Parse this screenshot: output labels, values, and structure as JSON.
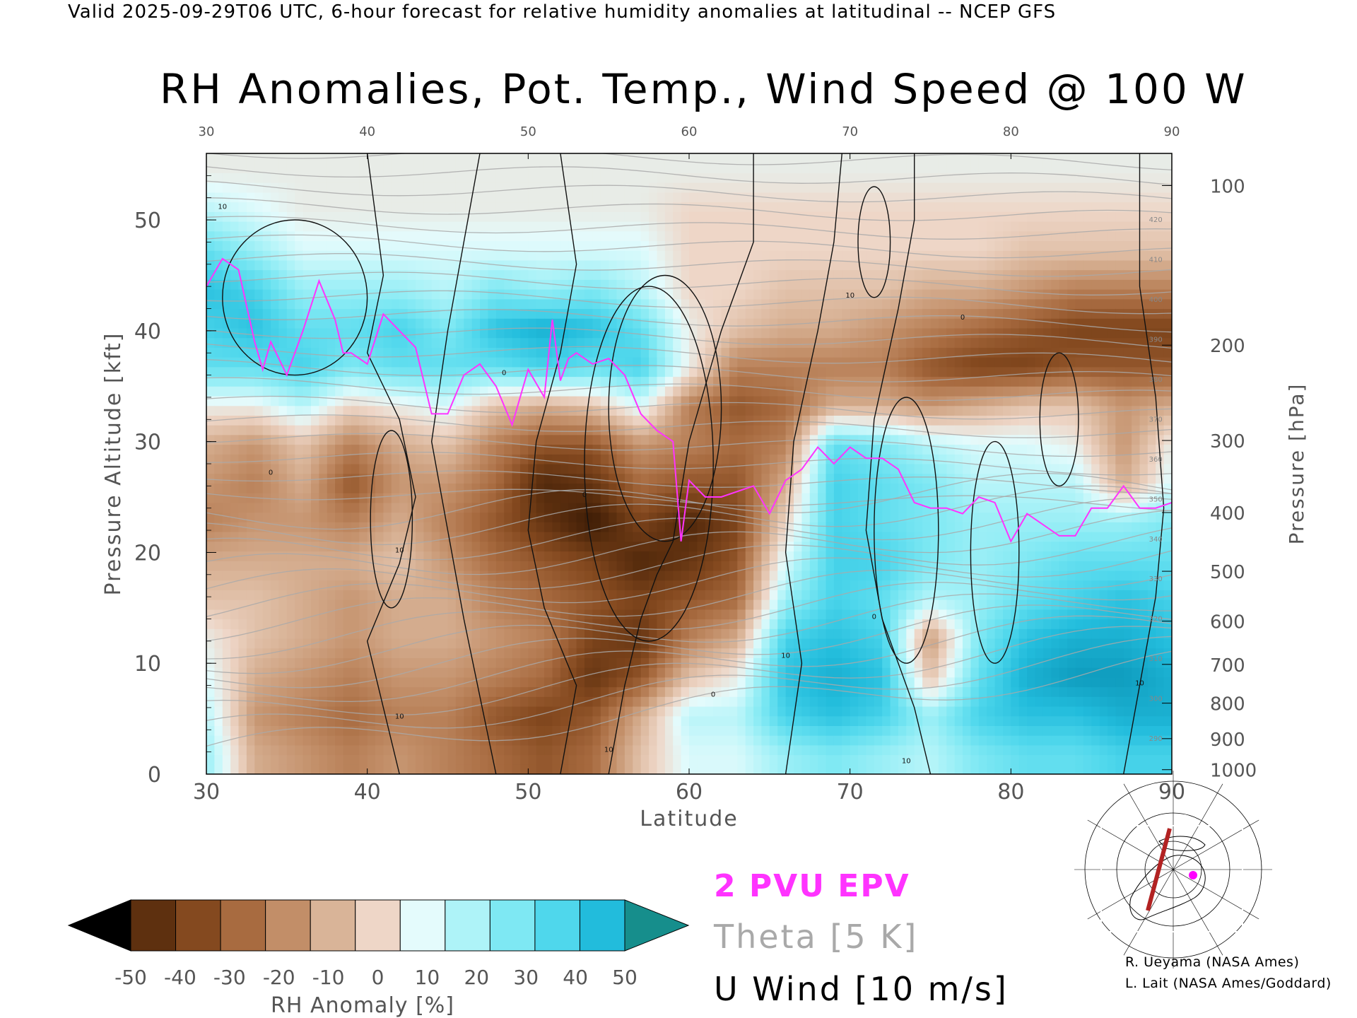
{
  "header": {
    "line": "Valid 2025-09-29T06 UTC, 6-hour forecast for relative humidity anomalies at latitudinal -- NCEP GFS"
  },
  "chart_data": {
    "type": "heatmap",
    "title": "RH Anomalies, Pot. Temp., Wind Speed @ 100 W",
    "xlabel": "Latitude",
    "ylabel_left": "Pressure Altitude [kft]",
    "ylabel_right": "Pressure [hPa]",
    "xlim": [
      30,
      90
    ],
    "ylim": [
      0,
      56
    ],
    "x_ticks": [
      30,
      40,
      50,
      60,
      70,
      80,
      90
    ],
    "y_ticks": [
      0,
      10,
      20,
      30,
      40,
      50
    ],
    "pressure_ticks": [
      {
        "label": "100",
        "kft": 53.1
      },
      {
        "label": "200",
        "kft": 38.7
      },
      {
        "label": "300",
        "kft": 30.1
      },
      {
        "label": "400",
        "kft": 23.6
      },
      {
        "label": "500",
        "kft": 18.3
      },
      {
        "label": "600",
        "kft": 13.8
      },
      {
        "label": "700",
        "kft": 9.9
      },
      {
        "label": "800",
        "kft": 6.4
      },
      {
        "label": "900",
        "kft": 3.2
      },
      {
        "label": "1000",
        "kft": 0.4
      }
    ],
    "colorbar": {
      "label": "RH Anomaly [%]",
      "ticks": [
        "-50",
        "-40",
        "-30",
        "-20",
        "-10",
        "0",
        "10",
        "20",
        "30",
        "40",
        "50"
      ],
      "colors": [
        "#3a1a05",
        "#5e300f",
        "#84491f",
        "#a86b40",
        "#c28e68",
        "#d9b498",
        "#eed6c7",
        "#e4fbfc",
        "#aef3f8",
        "#7ee8f3",
        "#4fd7ec",
        "#22bcdc",
        "#0f9cbe"
      ],
      "under_color": "#000000",
      "over_color": "#168e8c"
    },
    "legend": {
      "epv": "2 PVU EPV",
      "theta": "Theta [5 K]",
      "uwind": "U Wind [10 m/s]",
      "epv_color": "#ff33ff",
      "theta_color": "#a9a9a9"
    },
    "rh_bands": [
      {
        "lat": 30,
        "anom": [
          20,
          15,
          10,
          5,
          -5,
          -10,
          -20,
          -15,
          -10,
          5,
          30,
          35,
          40,
          30,
          15,
          5
        ]
      },
      {
        "lat": 33,
        "anom": [
          -10,
          -15,
          -10,
          -5,
          -5,
          -10,
          -15,
          -20,
          -15,
          5,
          30,
          40,
          35,
          20,
          10,
          5
        ]
      },
      {
        "lat": 36,
        "anom": [
          -15,
          -20,
          -15,
          -10,
          -10,
          -10,
          -15,
          -10,
          -5,
          15,
          35,
          30,
          20,
          10,
          5,
          5
        ]
      },
      {
        "lat": 39,
        "anom": [
          -20,
          -25,
          -20,
          -15,
          -15,
          -10,
          -20,
          -30,
          -20,
          0,
          25,
          30,
          20,
          10,
          5,
          5
        ]
      },
      {
        "lat": 42,
        "anom": [
          -15,
          -20,
          -15,
          -10,
          -10,
          -5,
          -10,
          -15,
          -10,
          5,
          30,
          35,
          20,
          10,
          5,
          5
        ]
      },
      {
        "lat": 45,
        "anom": [
          -20,
          -20,
          -15,
          -10,
          -10,
          -15,
          -20,
          -15,
          -5,
          10,
          30,
          25,
          15,
          10,
          5,
          5
        ]
      },
      {
        "lat": 48,
        "anom": [
          -25,
          -30,
          -20,
          -15,
          -20,
          -25,
          -30,
          -25,
          -20,
          -5,
          30,
          40,
          25,
          10,
          5,
          5
        ]
      },
      {
        "lat": 51,
        "anom": [
          -30,
          -35,
          -25,
          -20,
          -25,
          -30,
          -40,
          -45,
          -30,
          -10,
          35,
          45,
          20,
          10,
          5,
          5
        ]
      },
      {
        "lat": 54,
        "anom": [
          -25,
          -30,
          -40,
          -35,
          -30,
          -35,
          -50,
          -40,
          -30,
          -5,
          30,
          40,
          25,
          10,
          5,
          5
        ]
      },
      {
        "lat": 57,
        "anom": [
          -5,
          -10,
          -30,
          -40,
          -35,
          -45,
          -35,
          -25,
          -15,
          10,
          35,
          30,
          15,
          10,
          5,
          5
        ]
      },
      {
        "lat": 60,
        "anom": [
          10,
          15,
          -5,
          -20,
          -30,
          -40,
          -45,
          -30,
          -20,
          -20,
          5,
          5,
          0,
          0,
          0,
          5
        ]
      },
      {
        "lat": 63,
        "anom": [
          10,
          15,
          5,
          -10,
          -25,
          -30,
          -35,
          -30,
          -25,
          -30,
          -20,
          -5,
          0,
          0,
          0,
          5
        ]
      },
      {
        "lat": 66,
        "anom": [
          20,
          35,
          40,
          35,
          20,
          10,
          0,
          -10,
          -20,
          -25,
          -20,
          -10,
          -5,
          0,
          0,
          5
        ]
      },
      {
        "lat": 69,
        "anom": [
          25,
          40,
          45,
          40,
          35,
          35,
          35,
          35,
          30,
          -10,
          -20,
          -10,
          -5,
          0,
          0,
          5
        ]
      },
      {
        "lat": 72,
        "anom": [
          20,
          35,
          40,
          35,
          30,
          35,
          30,
          30,
          25,
          -10,
          -20,
          -15,
          -5,
          0,
          0,
          5
        ]
      },
      {
        "lat": 75,
        "anom": [
          15,
          20,
          -5,
          -15,
          15,
          25,
          25,
          25,
          15,
          -15,
          -30,
          -20,
          -10,
          0,
          0,
          5
        ]
      },
      {
        "lat": 78,
        "anom": [
          25,
          35,
          30,
          25,
          20,
          20,
          20,
          15,
          10,
          -10,
          -35,
          -25,
          -10,
          0,
          0,
          5
        ]
      },
      {
        "lat": 81,
        "anom": [
          30,
          40,
          45,
          40,
          30,
          25,
          20,
          15,
          10,
          -5,
          -35,
          -30,
          -15,
          -5,
          0,
          5
        ]
      },
      {
        "lat": 84,
        "anom": [
          30,
          40,
          50,
          45,
          35,
          30,
          20,
          15,
          5,
          -5,
          -30,
          -35,
          -20,
          -5,
          0,
          5
        ]
      },
      {
        "lat": 87,
        "anom": [
          35,
          45,
          50,
          45,
          40,
          30,
          20,
          -10,
          -15,
          -15,
          -30,
          -35,
          -20,
          -5,
          0,
          5
        ]
      },
      {
        "lat": 90,
        "anom": [
          35,
          45,
          45,
          40,
          35,
          30,
          25,
          10,
          5,
          -10,
          -30,
          -35,
          -20,
          -5,
          0,
          5
        ]
      }
    ],
    "rh_levels_kft": [
      1.75,
      5.25,
      8.75,
      12.25,
      15.75,
      19.25,
      22.75,
      26.25,
      29.75,
      33.25,
      36.75,
      40.25,
      43.75,
      47.25,
      50.75,
      54.25
    ],
    "epv_2pvu": {
      "x": [
        30,
        31,
        32,
        33,
        33.5,
        34,
        35,
        36,
        37,
        38,
        38.5,
        39,
        40,
        41,
        42,
        43,
        44,
        45,
        46,
        47,
        48,
        49,
        50,
        51,
        51.5,
        52,
        52.5,
        53,
        54,
        55,
        56,
        57,
        58,
        59,
        59.5,
        60,
        61,
        62,
        63,
        64,
        65,
        66,
        67,
        68,
        69,
        70,
        71,
        72,
        73,
        74,
        75,
        76,
        77,
        78,
        79,
        80,
        81,
        82,
        83,
        84,
        85,
        86,
        87,
        88,
        89,
        90
      ],
      "y": [
        44,
        46.5,
        45.5,
        39,
        36.5,
        39,
        36,
        40,
        44.5,
        41,
        38,
        38,
        37,
        41.5,
        40,
        38.5,
        32.5,
        32.5,
        36,
        37,
        35,
        31.5,
        36.5,
        34,
        41,
        35.5,
        37.5,
        38,
        37,
        37.5,
        36,
        32.5,
        31,
        30,
        21,
        26.5,
        25,
        25,
        25.5,
        26,
        23.5,
        26.5,
        27.5,
        29.5,
        28,
        29.5,
        28.5,
        28.5,
        27.5,
        24.5,
        24,
        24,
        23.5,
        25,
        24.5,
        21,
        23.5,
        22.5,
        21.5,
        21.5,
        24,
        24,
        26,
        24,
        24,
        24.5
      ]
    },
    "uwind_contour_labels": [
      "10",
      "0",
      "10",
      "0",
      "10",
      "0",
      "10",
      "0",
      "10",
      "10",
      "0",
      "10",
      "0",
      "10"
    ],
    "theta_contour_labels": [
      "290",
      "300",
      "310",
      "320",
      "330",
      "340",
      "350",
      "360",
      "370",
      "380",
      "390",
      "400",
      "410",
      "420"
    ],
    "inset_map": {
      "section_color": "#b22222",
      "marker_color": "#ff00ff"
    }
  },
  "credits": {
    "line1": "R. Ueyama (NASA Ames)",
    "line2": "L. Lait (NASA Ames/Goddard)"
  }
}
